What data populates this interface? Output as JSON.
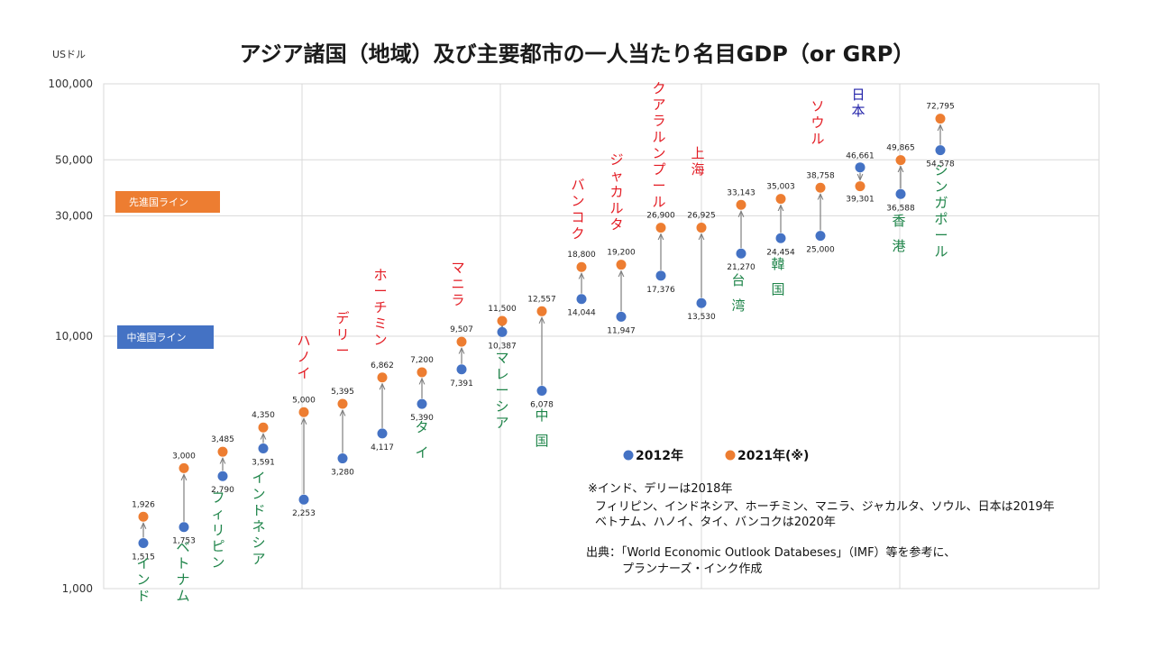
{
  "chart_data": {
    "type": "scatter",
    "title": "アジア諸国（地域）及び主要都市の一人当たり名目GDP（or GRP）",
    "ylabel": "USドル",
    "yscale": "log",
    "ylim": [
      1000,
      100000
    ],
    "yticks": [
      {
        "value": 1000,
        "label": "1,000"
      },
      {
        "value": 10000,
        "label": "10,000"
      },
      {
        "value": 30000,
        "label": "30,000"
      },
      {
        "value": 50000,
        "label": "50,000"
      },
      {
        "value": 100000,
        "label": "100,000"
      }
    ],
    "grid": true,
    "series": [
      {
        "name": "2012年",
        "color": "#4472C4"
      },
      {
        "name": "2021年(※)",
        "color": "#ED7D31"
      }
    ],
    "reference_lines": [
      {
        "label": "先進国ライン",
        "value": 30000,
        "color": "#ED7D31"
      },
      {
        "label": "中進国ライン",
        "value": 10000,
        "color": "#4472C4"
      }
    ],
    "points": [
      {
        "name": "インド",
        "kind": "country",
        "v2012": 1515,
        "l2012": "1,515",
        "v2021": 1926,
        "l2021": "1,926"
      },
      {
        "name": "ベトナム",
        "kind": "country",
        "v2012": 1753,
        "l2012": "1,753",
        "v2021": 3000,
        "l2021": "3,000"
      },
      {
        "name": "フィリピン",
        "kind": "country",
        "v2012": 2790,
        "l2012": "2,790",
        "v2021": 3485,
        "l2021": "3,485"
      },
      {
        "name": "インドネシア",
        "kind": "country",
        "v2012": 3591,
        "l2012": "3,591",
        "v2021": 4350,
        "l2021": "4,350"
      },
      {
        "name": "ハノイ",
        "kind": "city",
        "v2012": 2253,
        "l2012": "2,253",
        "v2021": 5000,
        "l2021": "5,000"
      },
      {
        "name": "デリー",
        "kind": "city",
        "v2012": 3280,
        "l2012": "3,280",
        "v2021": 5395,
        "l2021": "5,395"
      },
      {
        "name": "ホーチミン",
        "kind": "city",
        "v2012": 4117,
        "l2012": "4,117",
        "v2021": 6862,
        "l2021": "6,862"
      },
      {
        "name": "タイ",
        "kind": "country",
        "v2012": 5390,
        "l2012": "5,390",
        "v2021": 7200,
        "l2021": "7,200"
      },
      {
        "name": "マニラ",
        "kind": "city",
        "v2012": 7391,
        "l2012": "7,391",
        "v2021": 9507,
        "l2021": "9,507"
      },
      {
        "name": "マレーシア",
        "kind": "country",
        "v2012": 10387,
        "l2012": "10,387",
        "v2021": 11500,
        "l2021": "11,500"
      },
      {
        "name": "中国",
        "kind": "country",
        "v2012": 6078,
        "l2012": "6,078",
        "v2021": 12557,
        "l2021": "12,557"
      },
      {
        "name": "バンコク",
        "kind": "city",
        "v2012": 14044,
        "l2012": "14,044",
        "v2021": 18800,
        "l2021": "18,800"
      },
      {
        "name": "ジャカルタ",
        "kind": "city",
        "v2012": 11947,
        "l2012": "11,947",
        "v2021": 19200,
        "l2021": "19,200"
      },
      {
        "name": "クアラルンプール",
        "kind": "city",
        "v2012": 17376,
        "l2012": "17,376",
        "v2021": 26900,
        "l2021": "26,900"
      },
      {
        "name": "上海",
        "kind": "city",
        "v2012": 13530,
        "l2012": "13,530",
        "v2021": 26925,
        "l2021": "26,925"
      },
      {
        "name": "台湾",
        "kind": "country",
        "v2012": 21270,
        "l2012": "21,270",
        "v2021": 33143,
        "l2021": "33,143"
      },
      {
        "name": "韓国",
        "kind": "country",
        "v2012": 24454,
        "l2012": "24,454",
        "v2021": 35003,
        "l2021": "35,003"
      },
      {
        "name": "ソウル",
        "kind": "city",
        "v2012": 25000,
        "l2012": "25,000",
        "v2021": 38758,
        "l2021": "38,758"
      },
      {
        "name": "日本",
        "kind": "country_jp",
        "v2012": 46661,
        "l2012": "46,661",
        "v2021": 39301,
        "l2021": "39,301"
      },
      {
        "name": "香港",
        "kind": "country",
        "v2012": 36588,
        "l2012": "36,588",
        "v2021": 49865,
        "l2021": "49,865"
      },
      {
        "name": "シンガポール",
        "kind": "country",
        "v2012": 54578,
        "l2012": "54,578",
        "v2021": 72795,
        "l2021": "72,795"
      }
    ],
    "legend_placement": "bottom-right",
    "notes": [
      "※インド、デリーは2018年",
      "フィリピン、インドネシア、ホーチミン、マニラ、ジャカルタ、ソウル、日本は2019年",
      "ベトナム、ハノイ、タイ、バンコクは2020年"
    ],
    "source": [
      "出典：「World Economic Outlook Databeses」（IMF）等を参考に、",
      "プランナーズ・インク作成"
    ]
  },
  "colors": {
    "country": "#1E8449",
    "city": "#E31B23",
    "country_jp": "#1F1FA8",
    "arrow": "#7f7f7f",
    "grid": "#d9d9d9"
  }
}
